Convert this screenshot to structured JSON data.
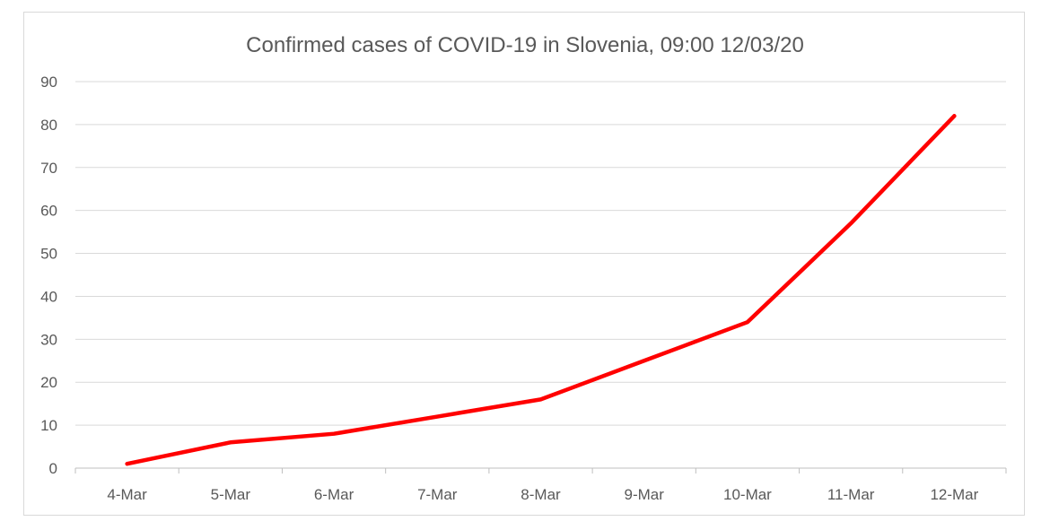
{
  "chart_data": {
    "type": "line",
    "title": "Confirmed cases of COVID-19 in Slovenia, 09:00 12/03/20",
    "xlabel": "",
    "ylabel": "",
    "categories": [
      "4-Mar",
      "5-Mar",
      "6-Mar",
      "7-Mar",
      "8-Mar",
      "9-Mar",
      "10-Mar",
      "11-Mar",
      "12-Mar"
    ],
    "series": [
      {
        "values": [
          1,
          6,
          8,
          12,
          16,
          25,
          34,
          57,
          82
        ],
        "color": "#ff0000"
      }
    ],
    "ylim": [
      0,
      90
    ],
    "yticks": [
      0,
      10,
      20,
      30,
      40,
      50,
      60,
      70,
      80,
      90
    ],
    "grid": true,
    "legend": "none"
  }
}
